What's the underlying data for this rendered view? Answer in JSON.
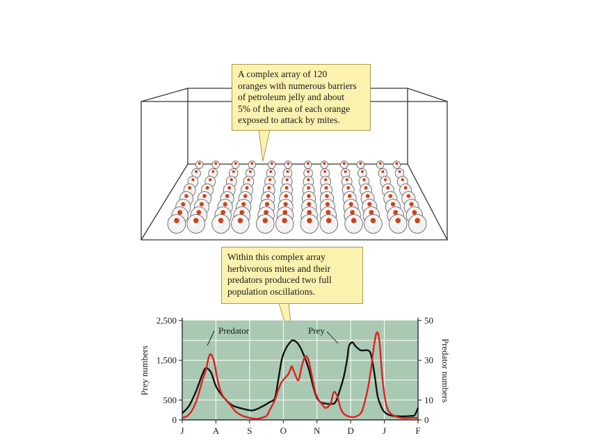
{
  "callouts": {
    "top": [
      "A complex array of 120",
      "oranges with numerous barriers",
      "of petroleum jelly and about",
      "5% of the area of each orange",
      "exposed to attack by mites."
    ],
    "bottom": [
      "Within this complex array",
      "herbivorous mites and their",
      "predators produced two full",
      "population oscillations."
    ]
  },
  "array": {
    "rows": 8,
    "cols_per_pair": 2,
    "pairs": 6
  },
  "colors": {
    "plot_bg": "#a9c9b3",
    "grid": "#ffffff",
    "predator": "#e02020",
    "prey": "#111111",
    "orange_dot": "#d2401a",
    "callout_bg": "#fbf2b0"
  },
  "chart_data": {
    "type": "line",
    "x_ticks": [
      "J",
      "A",
      "S",
      "O",
      "N",
      "D",
      "J",
      "F"
    ],
    "ylabel": "Prey numbers",
    "y2label": "Predator numbers",
    "ylim": [
      0,
      2500
    ],
    "y2lim": [
      0,
      50
    ],
    "y_ticks": [
      "0",
      "500",
      "1,500",
      "2,500"
    ],
    "y_tick_values": [
      0,
      500,
      1500,
      2500
    ],
    "y2_ticks": [
      "0",
      "10",
      "30",
      "50"
    ],
    "y2_tick_values": [
      0,
      10,
      30,
      50
    ],
    "annotations": [
      "Predator",
      "Prey"
    ],
    "series": [
      {
        "name": "Prey",
        "axis": "left",
        "points": [
          [
            0,
            170
          ],
          [
            0.2,
            350
          ],
          [
            0.4,
            700
          ],
          [
            0.6,
            1150
          ],
          [
            0.7,
            1300
          ],
          [
            0.85,
            1200
          ],
          [
            1.0,
            850
          ],
          [
            1.15,
            650
          ],
          [
            1.3,
            500
          ],
          [
            1.5,
            360
          ],
          [
            1.8,
            280
          ],
          [
            2.1,
            240
          ],
          [
            2.4,
            350
          ],
          [
            2.6,
            450
          ],
          [
            2.75,
            550
          ],
          [
            2.85,
            1000
          ],
          [
            2.95,
            1500
          ],
          [
            3.05,
            1750
          ],
          [
            3.2,
            1950
          ],
          [
            3.3,
            2000
          ],
          [
            3.45,
            1900
          ],
          [
            3.6,
            1650
          ],
          [
            3.75,
            1300
          ],
          [
            3.9,
            800
          ],
          [
            4.0,
            550
          ],
          [
            4.1,
            450
          ],
          [
            4.2,
            420
          ],
          [
            4.4,
            400
          ],
          [
            4.55,
            450
          ],
          [
            4.7,
            800
          ],
          [
            4.8,
            1100
          ],
          [
            4.9,
            1550
          ],
          [
            4.95,
            1850
          ],
          [
            5.05,
            1950
          ],
          [
            5.15,
            1850
          ],
          [
            5.3,
            1750
          ],
          [
            5.5,
            1750
          ],
          [
            5.6,
            1650
          ],
          [
            5.7,
            1200
          ],
          [
            5.8,
            600
          ],
          [
            5.9,
            350
          ],
          [
            6.0,
            200
          ],
          [
            6.2,
            110
          ],
          [
            6.5,
            90
          ],
          [
            6.8,
            100
          ],
          [
            6.9,
            120
          ],
          [
            7.0,
            300
          ]
        ]
      },
      {
        "name": "Predator",
        "axis": "right",
        "points": [
          [
            0,
            1
          ],
          [
            0.15,
            2
          ],
          [
            0.3,
            5
          ],
          [
            0.45,
            11
          ],
          [
            0.6,
            20
          ],
          [
            0.7,
            25
          ],
          [
            0.78,
            31
          ],
          [
            0.85,
            33
          ],
          [
            0.95,
            29
          ],
          [
            1.05,
            20
          ],
          [
            1.15,
            14
          ],
          [
            1.25,
            11
          ],
          [
            1.4,
            8
          ],
          [
            1.6,
            4
          ],
          [
            1.8,
            2
          ],
          [
            2.0,
            1
          ],
          [
            2.2,
            0.5
          ],
          [
            2.35,
            1
          ],
          [
            2.5,
            2
          ],
          [
            2.6,
            5
          ],
          [
            2.75,
            10
          ],
          [
            2.85,
            15
          ],
          [
            2.95,
            19
          ],
          [
            3.05,
            21
          ],
          [
            3.15,
            23
          ],
          [
            3.2,
            25
          ],
          [
            3.25,
            27
          ],
          [
            3.3,
            25
          ],
          [
            3.35,
            23
          ],
          [
            3.45,
            20
          ],
          [
            3.55,
            27
          ],
          [
            3.65,
            32
          ],
          [
            3.75,
            30
          ],
          [
            3.85,
            22
          ],
          [
            3.95,
            14
          ],
          [
            4.05,
            10
          ],
          [
            4.15,
            8
          ],
          [
            4.25,
            6
          ],
          [
            4.4,
            8
          ],
          [
            4.5,
            14
          ],
          [
            4.6,
            12
          ],
          [
            4.7,
            6
          ],
          [
            4.8,
            3
          ],
          [
            5.0,
            1.5
          ],
          [
            5.2,
            2
          ],
          [
            5.35,
            5
          ],
          [
            5.5,
            15
          ],
          [
            5.6,
            25
          ],
          [
            5.7,
            38
          ],
          [
            5.78,
            44
          ],
          [
            5.85,
            40
          ],
          [
            5.95,
            20
          ],
          [
            6.05,
            8
          ],
          [
            6.2,
            3
          ],
          [
            6.5,
            1
          ],
          [
            6.8,
            1
          ],
          [
            7.0,
            1
          ]
        ]
      }
    ]
  }
}
